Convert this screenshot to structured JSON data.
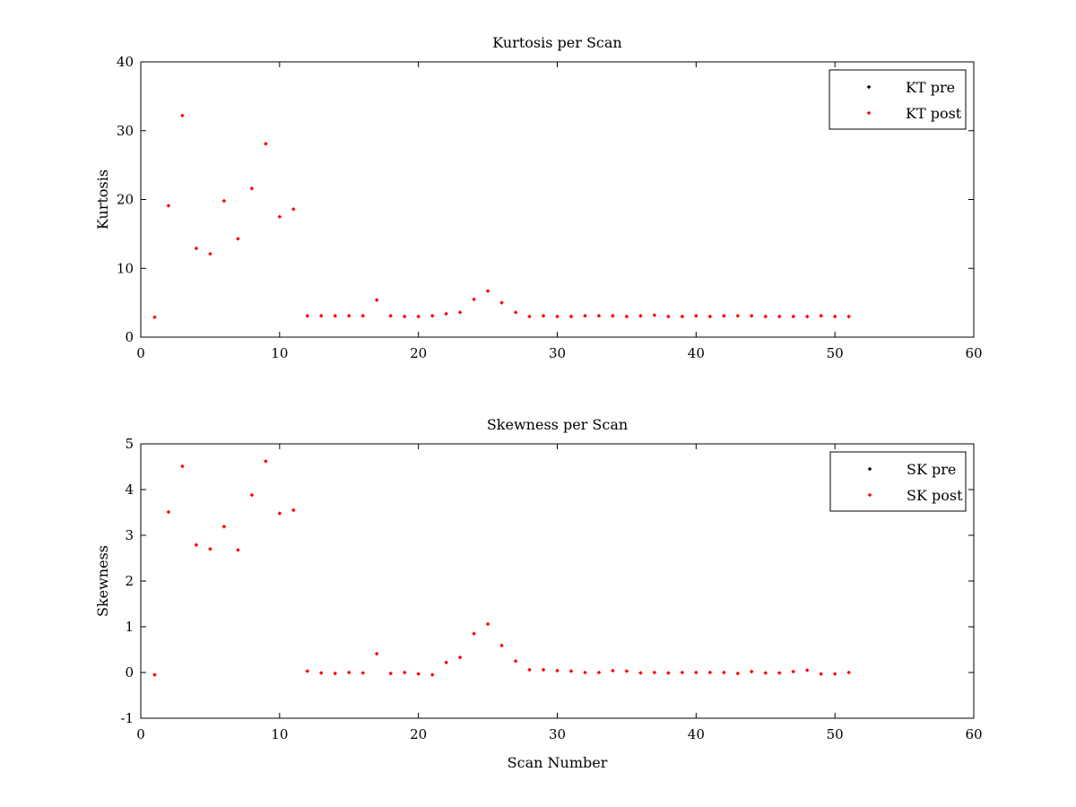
{
  "chart_data": [
    {
      "type": "scatter",
      "title": "Kurtosis per Scan",
      "xlabel": "",
      "ylabel": "Kurtosis",
      "xlim": [
        0,
        60
      ],
      "ylim": [
        0,
        40
      ],
      "xticks": [
        0,
        10,
        20,
        30,
        40,
        50,
        60
      ],
      "yticks": [
        0,
        10,
        20,
        30,
        40
      ],
      "grid": false,
      "legend_position": "top-right",
      "series": [
        {
          "name": "KT pre",
          "color": "#000000",
          "marker": "diamond",
          "x": [],
          "y": []
        },
        {
          "name": "KT post",
          "color": "#ff0000",
          "marker": "diamond",
          "x": [
            1,
            2,
            3,
            4,
            5,
            6,
            7,
            8,
            9,
            10,
            11,
            12,
            13,
            14,
            15,
            16,
            17,
            18,
            19,
            20,
            21,
            22,
            23,
            24,
            25,
            26,
            27,
            28,
            29,
            30,
            31,
            32,
            33,
            34,
            35,
            36,
            37,
            38,
            39,
            40,
            41,
            42,
            43,
            44,
            45,
            46,
            47,
            48,
            49,
            50,
            51
          ],
          "y": [
            2.9,
            19.1,
            32.2,
            12.9,
            12.1,
            19.8,
            14.3,
            21.6,
            28.1,
            17.5,
            18.6,
            3.1,
            3.1,
            3.1,
            3.1,
            3.1,
            5.4,
            3.1,
            3.0,
            3.0,
            3.1,
            3.4,
            3.6,
            5.5,
            6.7,
            5.0,
            3.6,
            3.0,
            3.1,
            3.0,
            3.0,
            3.1,
            3.1,
            3.1,
            3.0,
            3.1,
            3.2,
            3.0,
            3.0,
            3.1,
            3.0,
            3.1,
            3.1,
            3.1,
            3.0,
            3.0,
            3.0,
            3.0,
            3.1,
            3.0,
            3.0
          ]
        }
      ]
    },
    {
      "type": "scatter",
      "title": "Skewness per Scan",
      "xlabel": "Scan Number",
      "ylabel": "Skewness",
      "xlim": [
        0,
        60
      ],
      "ylim": [
        -1,
        5
      ],
      "xticks": [
        0,
        10,
        20,
        30,
        40,
        50,
        60
      ],
      "yticks": [
        -1,
        0,
        1,
        2,
        3,
        4,
        5
      ],
      "grid": false,
      "legend_position": "top-right",
      "series": [
        {
          "name": "SK pre",
          "color": "#000000",
          "marker": "diamond",
          "x": [],
          "y": []
        },
        {
          "name": "SK post",
          "color": "#ff0000",
          "marker": "diamond",
          "x": [
            1,
            2,
            3,
            4,
            5,
            6,
            7,
            8,
            9,
            10,
            11,
            12,
            13,
            14,
            15,
            16,
            17,
            18,
            19,
            20,
            21,
            22,
            23,
            24,
            25,
            26,
            27,
            28,
            29,
            30,
            31,
            32,
            33,
            34,
            35,
            36,
            37,
            38,
            39,
            40,
            41,
            42,
            43,
            44,
            45,
            46,
            47,
            48,
            49,
            50,
            51
          ],
          "y": [
            -0.05,
            3.51,
            4.51,
            2.79,
            2.7,
            3.19,
            2.68,
            3.88,
            4.62,
            3.48,
            3.55,
            0.03,
            -0.01,
            -0.02,
            0.0,
            -0.01,
            0.41,
            -0.02,
            0.0,
            -0.03,
            -0.05,
            0.22,
            0.33,
            0.85,
            1.06,
            0.59,
            0.25,
            0.06,
            0.06,
            0.04,
            0.03,
            0.0,
            0.0,
            0.04,
            0.03,
            -0.01,
            0.0,
            -0.01,
            0.0,
            0.0,
            0.0,
            0.0,
            -0.02,
            0.02,
            -0.01,
            -0.01,
            0.02,
            0.05,
            -0.03,
            -0.03,
            0.0
          ]
        }
      ]
    }
  ]
}
